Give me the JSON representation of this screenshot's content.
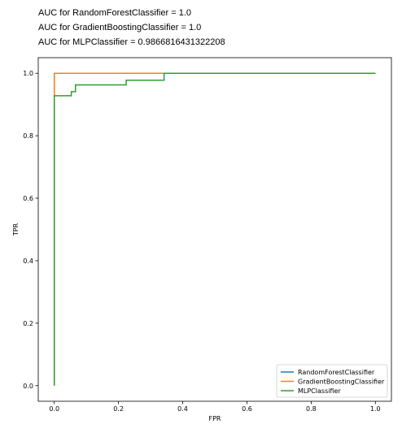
{
  "output_lines": [
    "AUC for RandomForestClassifier = 1.0",
    "AUC for GradientBoostingClassifier = 1.0",
    "AUC for MLPClassifier = 0.9866816431322208"
  ],
  "chart_data": {
    "type": "line",
    "title": "",
    "xlabel": "FPR",
    "ylabel": "TPR",
    "xlim": [
      -0.05,
      1.05
    ],
    "ylim": [
      -0.05,
      1.05
    ],
    "xticks": [
      "0.0",
      "0.2",
      "0.4",
      "0.6",
      "0.8",
      "1.0"
    ],
    "yticks": [
      "0.0",
      "0.2",
      "0.4",
      "0.6",
      "0.8",
      "1.0"
    ],
    "xtick_values": [
      0.0,
      0.2,
      0.4,
      0.6,
      0.8,
      1.0
    ],
    "ytick_values": [
      0.0,
      0.2,
      0.4,
      0.6,
      0.8,
      1.0
    ],
    "grid": false,
    "legend_position": "lower-right",
    "series": [
      {
        "name": "RandomForestClassifier",
        "color": "#1f77b4",
        "points": [
          [
            0.0,
            0.0
          ],
          [
            0.0,
            1.0
          ],
          [
            1.0,
            1.0
          ]
        ]
      },
      {
        "name": "GradientBoostingClassifier",
        "color": "#ff7f0e",
        "points": [
          [
            0.0,
            0.0
          ],
          [
            0.0,
            1.0
          ],
          [
            1.0,
            1.0
          ]
        ]
      },
      {
        "name": "MLPClassifier",
        "color": "#2ca02c",
        "points": [
          [
            0.0,
            0.0
          ],
          [
            0.0,
            0.928
          ],
          [
            0.053,
            0.928
          ],
          [
            0.053,
            0.941
          ],
          [
            0.066,
            0.941
          ],
          [
            0.066,
            0.963
          ],
          [
            0.224,
            0.963
          ],
          [
            0.224,
            0.978
          ],
          [
            0.342,
            0.978
          ],
          [
            0.342,
            1.0
          ],
          [
            1.0,
            1.0
          ]
        ]
      }
    ]
  }
}
